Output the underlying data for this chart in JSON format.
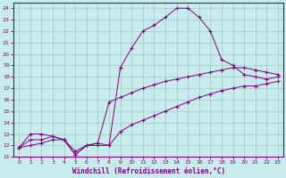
{
  "bg_color": "#c8ecec",
  "line_color": "#800080",
  "grid_color": "#a0c8c8",
  "xlabel": "Windchill (Refroidissement éolien,°C)",
  "s1_x": [
    0,
    1,
    2,
    3,
    4,
    5,
    6,
    7,
    8,
    9,
    10,
    11,
    12,
    13,
    14,
    15,
    16,
    17,
    18,
    19,
    20,
    21,
    22,
    23
  ],
  "s1_y": [
    11.8,
    13.0,
    13.0,
    12.8,
    12.5,
    11.2,
    12.0,
    12.2,
    12.0,
    18.8,
    20.5,
    22.0,
    22.5,
    23.2,
    24.0,
    24.0,
    23.2,
    22.0,
    19.5,
    19.0,
    18.2,
    18.0,
    17.8,
    18.0
  ],
  "s2_x": [
    0,
    1,
    2,
    3,
    4,
    5,
    6,
    7,
    8,
    9,
    10,
    11,
    12,
    13,
    14,
    15,
    16,
    17,
    18,
    19,
    20,
    21,
    22,
    23
  ],
  "s2_y": [
    11.8,
    12.5,
    12.5,
    12.8,
    12.5,
    11.2,
    12.0,
    12.2,
    15.8,
    16.2,
    16.6,
    17.0,
    17.3,
    17.6,
    17.8,
    18.0,
    18.2,
    18.4,
    18.6,
    18.8,
    18.8,
    18.6,
    18.4,
    18.2
  ],
  "s3_x": [
    0,
    1,
    2,
    3,
    4,
    5,
    6,
    7,
    8,
    9,
    10,
    11,
    12,
    13,
    14,
    15,
    16,
    17,
    18,
    19,
    20,
    21,
    22,
    23
  ],
  "s3_y": [
    11.8,
    12.0,
    12.2,
    12.5,
    12.5,
    11.5,
    12.0,
    12.0,
    12.0,
    13.2,
    13.8,
    14.2,
    14.6,
    15.0,
    15.4,
    15.8,
    16.2,
    16.5,
    16.8,
    17.0,
    17.2,
    17.2,
    17.4,
    17.6
  ],
  "xlim": [
    -0.5,
    23.5
  ],
  "ylim": [
    11,
    24.5
  ],
  "yticks": [
    11,
    12,
    13,
    14,
    15,
    16,
    17,
    18,
    19,
    20,
    21,
    22,
    23,
    24
  ],
  "xticks": [
    0,
    1,
    2,
    3,
    4,
    5,
    6,
    7,
    8,
    9,
    10,
    11,
    12,
    13,
    14,
    15,
    16,
    17,
    18,
    19,
    20,
    21,
    22,
    23
  ]
}
